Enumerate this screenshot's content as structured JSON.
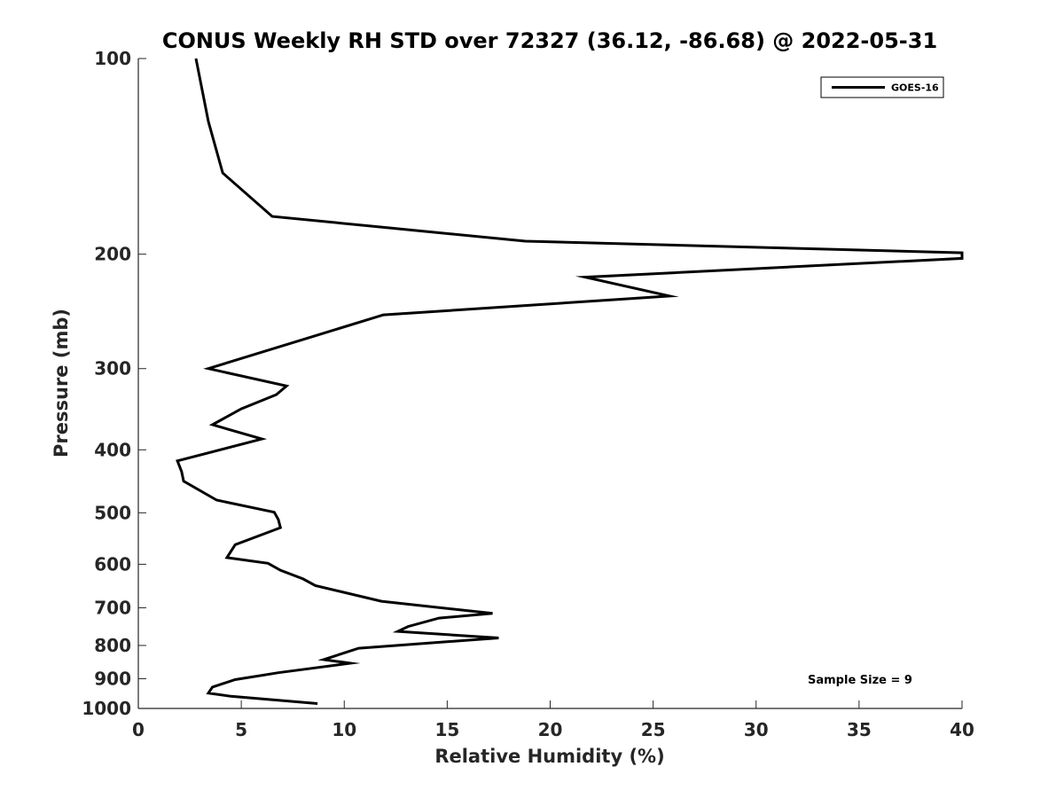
{
  "chart_data": {
    "type": "line",
    "title": "CONUS Weekly RH STD over 72327 (36.12, -86.68) @ 2022-05-31",
    "xlabel": "Relative Humidity (%)",
    "ylabel": "Pressure (mb)",
    "xlim": [
      0,
      40
    ],
    "ylim": [
      100,
      1000
    ],
    "y_scale": "log",
    "y_reversed": true,
    "x_ticks": [
      0,
      5,
      10,
      15,
      20,
      25,
      30,
      35,
      40
    ],
    "y_ticks": [
      100,
      200,
      300,
      400,
      500,
      600,
      700,
      800,
      900,
      1000
    ],
    "grid": false,
    "legend_position": "top-right",
    "annotation": "Sample Size = 9",
    "series": [
      {
        "name": "GOES-16",
        "color": "#000000",
        "x": [
          2.8,
          3.4,
          4.1,
          6.5,
          18.8,
          40.0,
          40.0,
          21.7,
          25.8,
          11.9,
          3.4,
          7.2,
          6.7,
          5.0,
          3.6,
          6.0,
          1.9,
          2.1,
          2.2,
          3.8,
          6.6,
          6.8,
          6.9,
          4.7,
          4.3,
          6.3,
          6.9,
          8.0,
          8.6,
          11.8,
          17.2,
          14.6,
          13.1,
          12.6,
          17.5,
          10.7,
          9.0,
          10.3,
          6.8,
          4.7,
          3.6,
          3.4,
          4.5,
          8.7
        ],
        "y": [
          100,
          125,
          150,
          175,
          191,
          199,
          203,
          217,
          232,
          248,
          300,
          319,
          329,
          346,
          366,
          385,
          416,
          432,
          447,
          478,
          499,
          512,
          527,
          560,
          586,
          598,
          613,
          632,
          647,
          684,
          714,
          726,
          748,
          761,
          779,
          808,
          841,
          852,
          881,
          903,
          927,
          947,
          958,
          983
        ]
      }
    ]
  }
}
